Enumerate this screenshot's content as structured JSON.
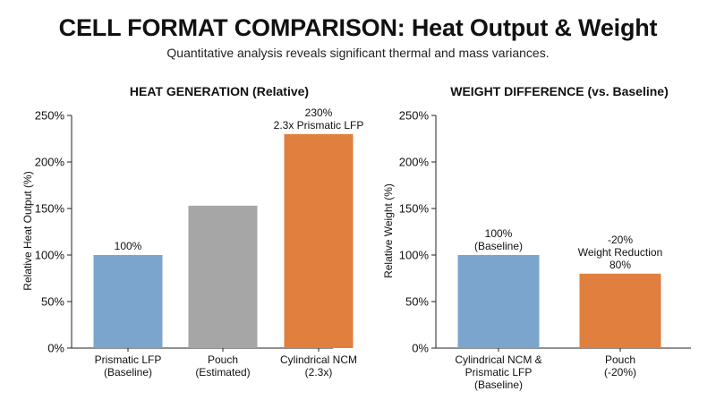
{
  "header": {
    "title": "CELL FORMAT COMPARISON: Heat Output & Weight",
    "subtitle": "Quantitative analysis reveals significant thermal and mass variances."
  },
  "chart_data": [
    {
      "type": "bar",
      "title": "HEAT GENERATION (Relative)",
      "xlabel": "",
      "ylabel": "Relative Heat Output (%)",
      "ylim": [
        0,
        250
      ],
      "yticks": [
        "0%",
        "50%",
        "100%",
        "150%",
        "200%",
        "250%"
      ],
      "grid": false,
      "categories": [
        [
          "Prismatic LFP",
          "(Baseline)"
        ],
        [
          "Pouch",
          "(Estimated)"
        ],
        [
          "Cylindrical NCM",
          "(2.3x)"
        ]
      ],
      "values": [
        100,
        153,
        230
      ],
      "colors": [
        "#7ba5cc",
        "#a6a6a6",
        "#e07f3e"
      ],
      "data_labels": [
        [
          "100%"
        ],
        [],
        [
          "230%",
          "2.3x Prismatic LFP"
        ]
      ]
    },
    {
      "type": "bar",
      "title": "WEIGHT DIFFERENCE (vs. Baseline)",
      "xlabel": "",
      "ylabel": "Relative Weight (%)",
      "ylim": [
        0,
        250
      ],
      "yticks": [
        "0%",
        "50%",
        "100%",
        "150%",
        "200%",
        "250%"
      ],
      "grid": false,
      "categories": [
        [
          "Cylindrical NCM &",
          "Prismatic LFP",
          "(Baseline)"
        ],
        [
          "Pouch",
          "(-20%)"
        ]
      ],
      "values": [
        100,
        80
      ],
      "colors": [
        "#7ba5cc",
        "#e07f3e"
      ],
      "data_labels": [
        [
          "100%",
          "(Baseline)"
        ],
        [
          "-20%",
          "Weight Reduction",
          "80%"
        ]
      ]
    }
  ]
}
